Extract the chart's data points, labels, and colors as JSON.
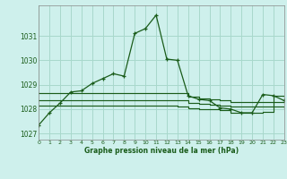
{
  "title": "Graphe pression niveau de la mer (hPa)",
  "bg_color": "#cef0ec",
  "grid_color": "#a8d8cc",
  "line_color": "#1a5c1a",
  "text_color": "#1a5c1a",
  "xlim": [
    0,
    23
  ],
  "ylim": [
    1026.75,
    1032.25
  ],
  "yticks": [
    1027,
    1028,
    1029,
    1030,
    1031
  ],
  "xticks": [
    0,
    1,
    2,
    3,
    4,
    5,
    6,
    7,
    8,
    9,
    10,
    11,
    12,
    13,
    14,
    15,
    16,
    17,
    18,
    19,
    20,
    21,
    22,
    23
  ],
  "hours": [
    0,
    1,
    2,
    3,
    4,
    5,
    6,
    7,
    8,
    9,
    10,
    11,
    12,
    13,
    14,
    15,
    16,
    17,
    18,
    19,
    20,
    21,
    22,
    23
  ],
  "pressure_main": [
    1027.35,
    1027.85,
    1028.25,
    1028.7,
    1028.75,
    1029.05,
    1029.25,
    1029.45,
    1029.35,
    1031.1,
    1031.3,
    1031.85,
    1030.05,
    1030.0,
    1028.55,
    1028.4,
    1028.35,
    1028.05,
    1028.0,
    1027.85,
    1027.85,
    1028.6,
    1028.55,
    1028.35
  ],
  "press_high": [
    1028.65,
    1028.65,
    1028.65,
    1028.65,
    1028.65,
    1028.65,
    1028.65,
    1028.65,
    1028.65,
    1028.65,
    1028.65,
    1028.65,
    1028.65,
    1028.65,
    1028.5,
    1028.45,
    1028.4,
    1028.35,
    1028.3,
    1028.3,
    1028.3,
    1028.3,
    1028.55,
    1028.35
  ],
  "press_mid": [
    1028.38,
    1028.38,
    1028.38,
    1028.38,
    1028.38,
    1028.38,
    1028.38,
    1028.38,
    1028.38,
    1028.38,
    1028.38,
    1028.38,
    1028.38,
    1028.35,
    1028.25,
    1028.2,
    1028.18,
    1028.15,
    1028.1,
    1028.1,
    1028.1,
    1028.1,
    1028.3,
    1028.2
  ],
  "press_low": [
    1028.15,
    1028.15,
    1028.15,
    1028.15,
    1028.15,
    1028.15,
    1028.15,
    1028.15,
    1028.15,
    1028.15,
    1028.15,
    1028.15,
    1028.15,
    1028.1,
    1028.05,
    1028.0,
    1028.0,
    1027.95,
    1027.85,
    1027.85,
    1027.85,
    1027.9,
    1028.1,
    1028.05
  ]
}
